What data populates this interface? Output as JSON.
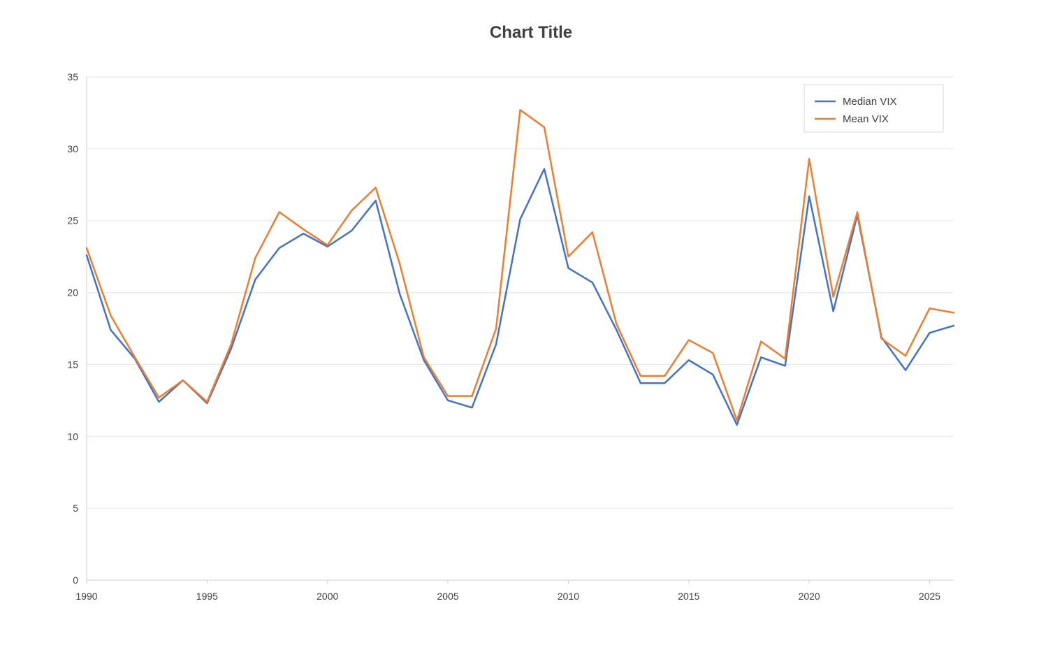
{
  "chart_data": {
    "type": "line",
    "title": "Chart Title",
    "xlabel": "",
    "ylabel": "",
    "x": [
      1990,
      1991,
      1992,
      1993,
      1994,
      1995,
      1996,
      1997,
      1998,
      1999,
      2000,
      2001,
      2002,
      2003,
      2004,
      2005,
      2006,
      2007,
      2008,
      2009,
      2010,
      2011,
      2012,
      2013,
      2014,
      2015,
      2016,
      2017,
      2018,
      2019,
      2020,
      2021,
      2022,
      2023,
      2024,
      2025,
      2026
    ],
    "xlim": [
      1990,
      2026
    ],
    "ylim": [
      0,
      35
    ],
    "x_ticks": [
      "1990",
      "1995",
      "2000",
      "2005",
      "2010",
      "2015",
      "2020",
      "2025"
    ],
    "y_ticks": [
      "0",
      "5",
      "10",
      "15",
      "20",
      "25",
      "30",
      "35"
    ],
    "grid": "horizontal",
    "legend_position": "top-right",
    "series": [
      {
        "name": "Median VIX",
        "color": "#4472C4",
        "values": [
          22.6,
          17.4,
          15.4,
          12.4,
          13.9,
          12.3,
          16.1,
          20.9,
          23.1,
          24.1,
          23.2,
          24.3,
          26.4,
          19.9,
          15.3,
          12.5,
          12.0,
          16.4,
          25.1,
          28.6,
          21.7,
          20.7,
          17.4,
          13.7,
          13.7,
          15.3,
          14.3,
          10.8,
          15.5,
          14.9,
          26.7,
          18.7,
          25.4,
          16.9,
          14.6,
          17.2,
          17.7
        ]
      },
      {
        "name": "Mean VIX",
        "color": "#ED7D31",
        "values": [
          23.1,
          18.4,
          15.5,
          12.7,
          13.9,
          12.4,
          16.4,
          22.4,
          25.6,
          24.4,
          23.3,
          25.7,
          27.3,
          22.0,
          15.5,
          12.8,
          12.8,
          17.5,
          32.7,
          31.5,
          22.5,
          24.2,
          17.8,
          14.2,
          14.2,
          16.7,
          15.8,
          11.1,
          16.6,
          15.4,
          29.3,
          19.7,
          25.6,
          16.8,
          15.6,
          18.9,
          18.6
        ]
      }
    ]
  }
}
